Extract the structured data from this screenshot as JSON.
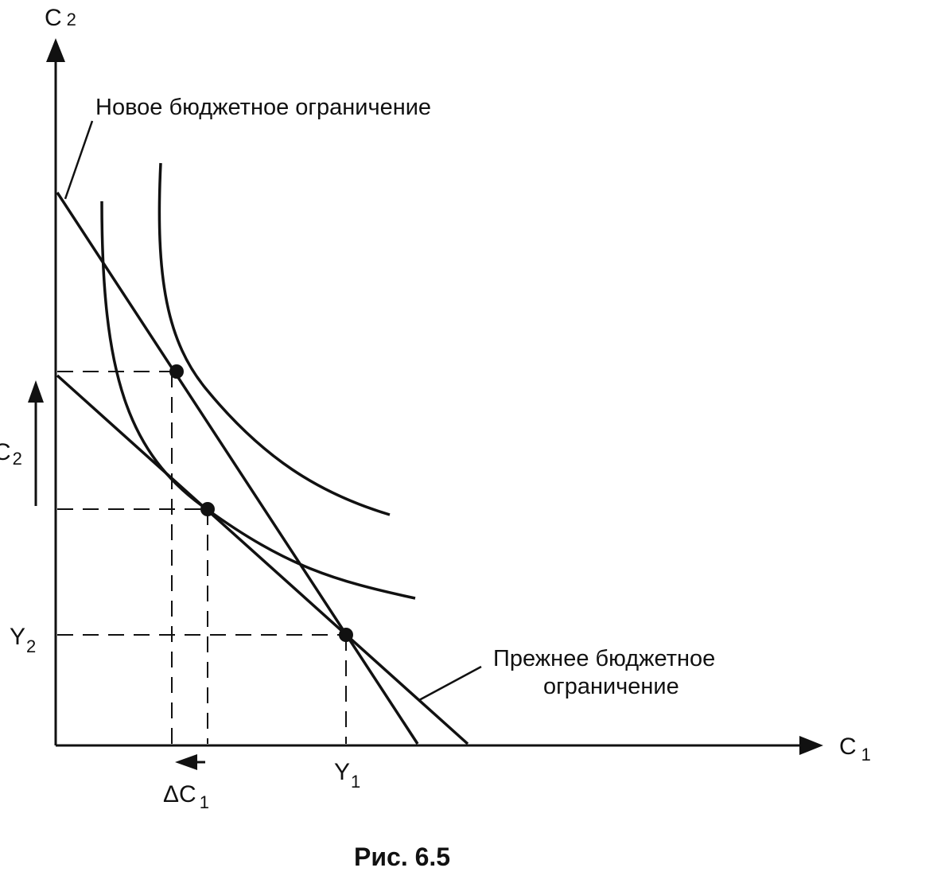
{
  "axes": {
    "y_label_main": "C",
    "y_label_sub": "2",
    "x_label_main": "C",
    "x_label_sub": "1"
  },
  "labels": {
    "new_budget": "Новое бюджетное ограничение",
    "old_budget_line1": "Прежнее бюджетное",
    "old_budget_line2": "ограничение",
    "delta_c2_main": "C",
    "delta_c2_sub": "2",
    "y2_main": "Y",
    "y2_sub": "2",
    "y1_main": "Y",
    "y1_sub": "1",
    "delta_c1_main": "ΔC",
    "delta_c1_sub": "1"
  },
  "caption": "Рис. 6.5",
  "colors": {
    "ink": "#111111",
    "background": "#ffffff"
  }
}
